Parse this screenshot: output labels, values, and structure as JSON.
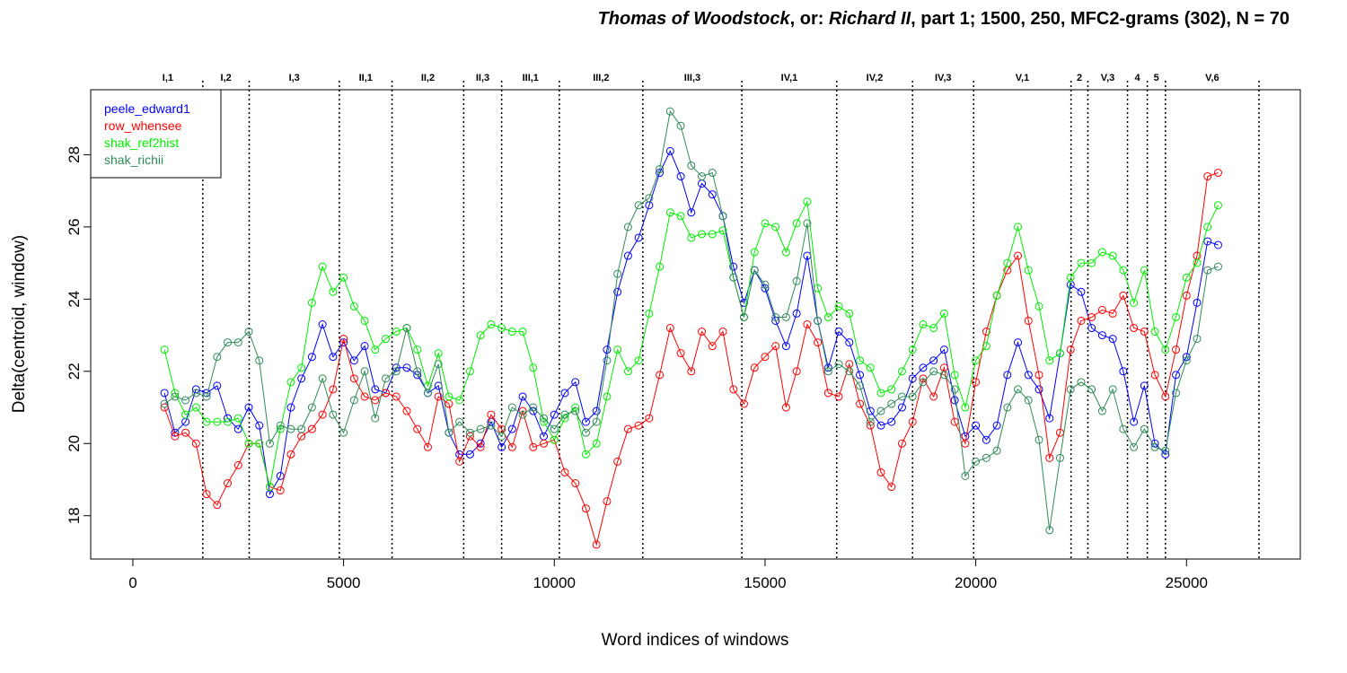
{
  "chart_data": {
    "type": "line",
    "title_parts": [
      {
        "text": "Thomas of Woodstock",
        "italic": true
      },
      {
        "text": ", or: ",
        "italic": false
      },
      {
        "text": "Richard II",
        "italic": true
      },
      {
        "text": ", part 1; 1500, 250, MFC2-grams (302), N = 70",
        "italic": false
      }
    ],
    "xlabel": "Word indices of windows",
    "ylabel": "Delta(centroid, window)",
    "xlim": [
      -1000,
      27700
    ],
    "ylim": [
      16.8,
      29.8
    ],
    "xticks": [
      0,
      5000,
      10000,
      15000,
      20000,
      25000
    ],
    "yticks": [
      18,
      20,
      22,
      24,
      26,
      28
    ],
    "grid": false,
    "legend_position": "top-left",
    "scene_boundaries": [
      1660,
      2760,
      4900,
      6150,
      7850,
      8750,
      10120,
      12100,
      14450,
      16700,
      18500,
      19950,
      22260,
      22660,
      23600,
      24070,
      24500,
      26720
    ],
    "scenes": [
      {
        "label": "I,1",
        "x": 830
      },
      {
        "label": "I,2",
        "x": 2210
      },
      {
        "label": "I,3",
        "x": 3830
      },
      {
        "label": "II,1",
        "x": 5525
      },
      {
        "label": "II,2",
        "x": 7000
      },
      {
        "label": "II,3",
        "x": 8300
      },
      {
        "label": "III,1",
        "x": 9435
      },
      {
        "label": "III,2",
        "x": 11110
      },
      {
        "label": "III,3",
        "x": 13275
      },
      {
        "label": "IV,1",
        "x": 15575
      },
      {
        "label": "IV,2",
        "x": 17600
      },
      {
        "label": "IV,3",
        "x": 19225
      },
      {
        "label": "V,1",
        "x": 21105
      },
      {
        "label": "2",
        "x": 22460
      },
      {
        "label": "V,3",
        "x": 23130
      },
      {
        "label": "4",
        "x": 23835
      },
      {
        "label": "5",
        "x": 24285
      },
      {
        "label": "V,6",
        "x": 25610
      }
    ],
    "x": [
      750,
      1000,
      1250,
      1500,
      1750,
      2000,
      2250,
      2500,
      2750,
      3000,
      3250,
      3500,
      3750,
      4000,
      4250,
      4500,
      4750,
      5000,
      5250,
      5500,
      5750,
      6000,
      6250,
      6500,
      6750,
      7000,
      7250,
      7500,
      7750,
      8000,
      8250,
      8500,
      8750,
      9000,
      9250,
      9500,
      9750,
      10000,
      10250,
      10500,
      10750,
      11000,
      11250,
      11500,
      11750,
      12000,
      12250,
      12500,
      12750,
      13000,
      13250,
      13500,
      13750,
      14000,
      14250,
      14500,
      14750,
      15000,
      15250,
      15500,
      15750,
      16000,
      16250,
      16500,
      16750,
      17000,
      17250,
      17500,
      17750,
      18000,
      18250,
      18500,
      18750,
      19000,
      19250,
      19500,
      19750,
      20000,
      20250,
      20500,
      20750,
      21000,
      21250,
      21500,
      21750,
      22000,
      22250,
      22500,
      22750,
      23000,
      23250,
      23500,
      23750,
      24000,
      24250,
      24500,
      24750,
      25000,
      25250,
      25500,
      25750
    ],
    "series": [
      {
        "name": "peele_edward1",
        "color": "#0000ff",
        "values": [
          21.4,
          20.3,
          20.6,
          21.5,
          21.4,
          21.6,
          20.7,
          20.4,
          21.0,
          20.5,
          18.6,
          19.1,
          21.0,
          21.8,
          22.4,
          23.3,
          22.4,
          22.8,
          22.3,
          22.7,
          21.5,
          21.4,
          22.1,
          22.1,
          21.9,
          21.4,
          21.6,
          20.3,
          19.7,
          19.7,
          20.0,
          20.6,
          19.9,
          20.4,
          21.3,
          20.9,
          20.2,
          20.8,
          21.4,
          21.7,
          20.6,
          20.9,
          22.6,
          24.2,
          25.2,
          25.7,
          26.6,
          27.5,
          28.1,
          27.4,
          26.4,
          27.2,
          26.9,
          26.3,
          24.9,
          23.9,
          24.8,
          24.3,
          23.4,
          22.7,
          23.6,
          25.2,
          23.4,
          22.1,
          23.1,
          22.8,
          21.9,
          20.9,
          20.5,
          20.6,
          21.0,
          21.8,
          22.1,
          22.3,
          22.6,
          21.2,
          20.2,
          20.5,
          20.1,
          20.5,
          21.9,
          22.8,
          21.9,
          21.5,
          20.7,
          22.5,
          24.4,
          24.2,
          23.2,
          23.0,
          22.9,
          22.0,
          20.6,
          21.6,
          20.0,
          19.7,
          21.9,
          22.4,
          23.9,
          25.6,
          25.5
        ]
      },
      {
        "name": "row_whensee",
        "color": "#ff0000",
        "values": [
          21.0,
          20.2,
          20.3,
          20.0,
          18.6,
          18.3,
          18.9,
          19.4,
          20.0,
          20.0,
          18.8,
          18.7,
          19.7,
          20.2,
          20.4,
          20.8,
          21.5,
          22.9,
          21.8,
          21.3,
          21.2,
          21.4,
          21.3,
          20.9,
          20.4,
          19.9,
          21.3,
          21.1,
          19.5,
          20.2,
          19.9,
          20.8,
          20.4,
          19.9,
          20.9,
          19.9,
          20.0,
          20.1,
          19.2,
          18.9,
          18.2,
          17.2,
          18.4,
          19.5,
          20.4,
          20.5,
          20.7,
          21.9,
          23.2,
          22.5,
          22.0,
          23.1,
          22.7,
          23.1,
          21.5,
          21.1,
          22.1,
          22.4,
          22.7,
          21.0,
          22.0,
          23.3,
          22.8,
          21.4,
          21.3,
          22.2,
          21.1,
          20.5,
          19.2,
          18.8,
          20.0,
          20.6,
          21.8,
          21.3,
          22.1,
          20.6,
          20.0,
          21.7,
          23.1,
          24.1,
          24.8,
          25.2,
          23.4,
          21.9,
          19.6,
          20.3,
          22.6,
          23.4,
          23.5,
          23.7,
          23.6,
          24.1,
          23.2,
          23.1,
          21.9,
          21.3,
          22.6,
          24.1,
          25.2,
          27.4,
          27.5
        ]
      },
      {
        "name": "shak_ref2hist",
        "color": "#00ee00",
        "values": [
          22.6,
          21.4,
          20.8,
          21.0,
          20.6,
          20.6,
          20.6,
          20.7,
          20.0,
          20.0,
          18.8,
          20.4,
          21.7,
          22.1,
          23.9,
          24.9,
          24.2,
          24.6,
          23.8,
          23.4,
          22.6,
          22.9,
          23.1,
          23.2,
          22.6,
          21.6,
          22.5,
          21.3,
          21.2,
          22.0,
          23.0,
          23.3,
          23.2,
          23.1,
          23.1,
          22.1,
          20.6,
          20.1,
          20.7,
          21.0,
          19.7,
          20.0,
          21.3,
          22.6,
          22.0,
          22.3,
          23.6,
          24.9,
          26.4,
          26.3,
          25.7,
          25.8,
          25.8,
          25.9,
          24.6,
          23.5,
          25.3,
          26.1,
          26.0,
          25.3,
          26.1,
          26.7,
          24.3,
          23.5,
          23.8,
          23.6,
          22.3,
          22.1,
          21.4,
          21.5,
          22.0,
          22.6,
          23.3,
          23.2,
          23.6,
          21.9,
          21.0,
          22.3,
          22.7,
          24.1,
          25.0,
          26.0,
          24.8,
          23.8,
          22.3,
          22.5,
          24.6,
          25.0,
          25.0,
          25.3,
          25.2,
          24.8,
          23.9,
          24.8,
          23.1,
          22.6,
          23.5,
          24.6,
          25.0,
          26.0,
          26.6
        ]
      },
      {
        "name": "shak_richii",
        "color": "#2e8b57",
        "values": [
          21.1,
          21.3,
          21.2,
          21.4,
          21.3,
          22.4,
          22.8,
          22.8,
          23.1,
          22.3,
          20.0,
          20.5,
          20.4,
          20.4,
          21.0,
          21.8,
          20.8,
          20.3,
          21.2,
          22.0,
          20.7,
          21.8,
          22.0,
          23.2,
          22.0,
          21.4,
          22.2,
          20.3,
          20.6,
          20.3,
          20.4,
          20.5,
          20.2,
          21.0,
          20.8,
          21.0,
          20.7,
          20.4,
          20.8,
          20.9,
          20.3,
          20.6,
          22.3,
          24.7,
          26.0,
          26.6,
          26.8,
          27.6,
          29.2,
          28.8,
          27.7,
          27.4,
          27.5,
          26.3,
          24.6,
          23.5,
          24.8,
          24.4,
          23.5,
          23.5,
          24.5,
          26.1,
          23.4,
          22.0,
          22.2,
          22.0,
          21.6,
          20.6,
          20.9,
          21.1,
          21.3,
          21.3,
          21.7,
          22.0,
          21.9,
          21.5,
          19.1,
          19.5,
          19.6,
          19.8,
          21.0,
          21.5,
          21.2,
          20.1,
          17.6,
          19.6,
          21.5,
          21.7,
          21.5,
          20.9,
          21.5,
          20.4,
          19.9,
          20.4,
          19.9,
          19.8,
          21.4,
          22.3,
          22.9,
          24.8,
          24.9
        ]
      }
    ]
  }
}
